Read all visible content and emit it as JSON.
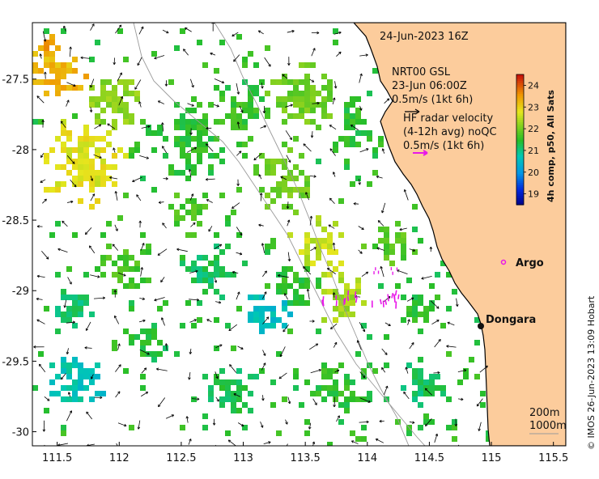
{
  "map": {
    "timestamp": "24-Jun-2023 16Z",
    "model_label_line1": "NRT00 GSL",
    "model_label_line2": "23-Jun 06:00Z",
    "model_scale": "0.5m/s (1kt 6h)",
    "radar_label_line1": "HF radar velocity",
    "radar_label_line2": "(4-12h avg) noQC",
    "radar_scale": "0.5m/s (1kt 6h)",
    "places": [
      {
        "name": "Argo",
        "lon": 114.95,
        "lat": -28.83
      },
      {
        "name": "Dongara",
        "lon": 114.93,
        "lat": -29.25
      }
    ],
    "isobaths": [
      "200m",
      "1000m"
    ],
    "credit": "© IMOS 26-Jun-2023 13:09 Hobart"
  },
  "axes": {
    "x_ticks": [
      "111.5",
      "112",
      "112.5",
      "113",
      "113.5",
      "114",
      "114.5",
      "115",
      "115.5"
    ],
    "x_values": [
      111.5,
      112,
      112.5,
      113,
      113.5,
      114,
      114.5,
      115,
      115.5
    ],
    "y_ticks": [
      "-27.5",
      "-28",
      "-28.5",
      "-29",
      "-29.5",
      "-30"
    ],
    "y_values": [
      -27.5,
      -28,
      -28.5,
      -29,
      -29.5,
      -30
    ],
    "xlim": [
      111.3,
      115.6
    ],
    "ylim": [
      -30.1,
      -27.1
    ]
  },
  "colorbar": {
    "title": "4h comp, p50, All Sats",
    "ticks": [
      "24",
      "23",
      "22",
      "21",
      "20",
      "19"
    ],
    "tick_values": [
      24,
      23,
      22,
      21,
      20,
      19
    ],
    "range": [
      18.5,
      24.5
    ]
  },
  "colors": {
    "land": "#fccc9c",
    "coast": "#000000",
    "model_arrow": "#000000",
    "radar_arrow": "#e817e8",
    "argo_marker": "#e817e8"
  }
}
